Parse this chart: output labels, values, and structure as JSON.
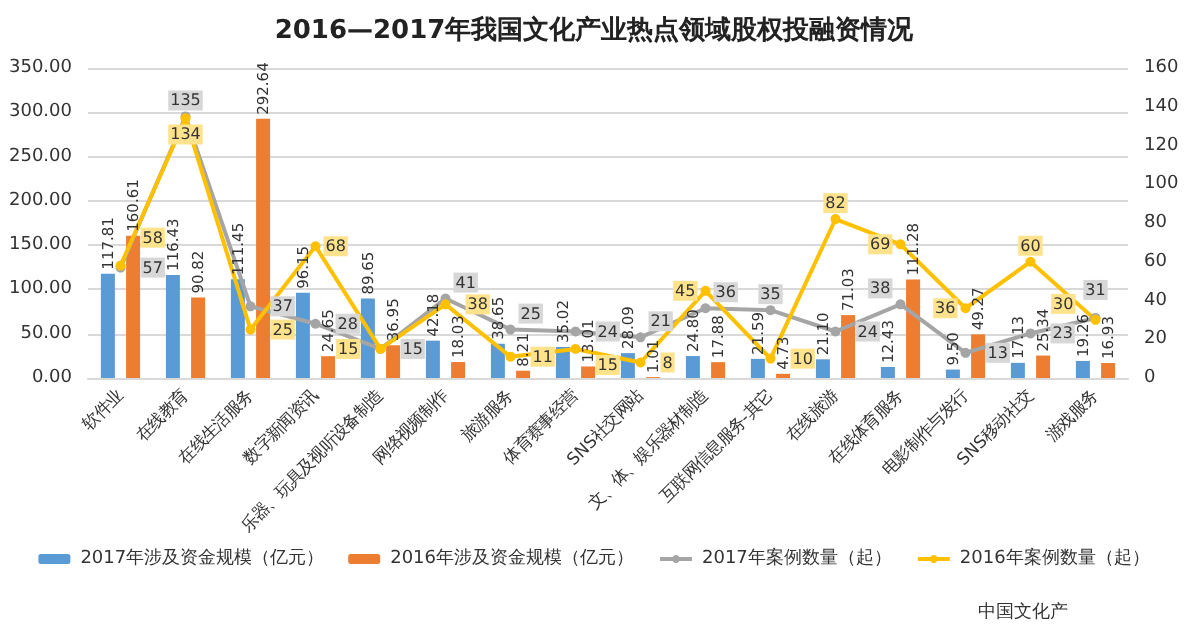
{
  "chart_data": {
    "type": "bar",
    "title": "2016—2017年我国文化产业热点领域股权投融资情况",
    "categories": [
      "软件业",
      "在线教育",
      "在线生活服务",
      "数字新闻资讯",
      "乐器、玩具及视听设备制造",
      "网络视频制作",
      "旅游服务",
      "体育赛事经营",
      "SNS社交网站",
      "文、体、娱乐器材制造",
      "互联网信息服务-其它",
      "在线旅游",
      "在线体育服务",
      "电影制作与发行",
      "SNS移动社交",
      "游戏服务"
    ],
    "series": [
      {
        "name": "2017年涉及资金规模（亿元）",
        "color": "#5b9bd5",
        "values": [
          117.81,
          116.43,
          111.45,
          96.15,
          89.65,
          42.18,
          38.65,
          35.02,
          28.09,
          24.8,
          21.59,
          21.1,
          12.43,
          9.5,
          17.13,
          19.26
        ],
        "value_labels": [
          "117.81",
          "116.43",
          "111.45",
          "96.15",
          "89.65",
          "42.18",
          "38.65",
          "35.02",
          "28.09",
          "24.80",
          "21.59",
          "21.10",
          "12.43",
          "9.50",
          "17.13",
          "19.26"
        ]
      },
      {
        "name": "2016年涉及资金规模（亿元）",
        "color": "#ed7d31",
        "values": [
          160.61,
          90.82,
          292.64,
          24.65,
          36.95,
          18.03,
          8.21,
          13.01,
          1.01,
          17.88,
          4.73,
          71.03,
          111.28,
          49.27,
          25.34,
          16.93
        ],
        "value_labels": [
          "160.61",
          "90.82",
          "292.64",
          "24.65",
          "36.95",
          "18.03",
          "8.21",
          "13.01",
          "1.01",
          "17.88",
          "4.73",
          "71.03",
          "111.28",
          "49.27",
          "25.34",
          "16.93"
        ]
      },
      {
        "name": "2017年案例数量（起）",
        "type": "line",
        "axis": "y2",
        "color": "#a5a5a5",
        "values": [
          57,
          135,
          37,
          28,
          15,
          41,
          25,
          24,
          21,
          36,
          35,
          24,
          38,
          13,
          23,
          31
        ],
        "value_labels": [
          "57",
          "135",
          "37",
          "28",
          "15",
          "41",
          "25",
          "24",
          "21",
          "36",
          "35",
          "24",
          "38",
          "13",
          "23",
          "31"
        ]
      },
      {
        "name": "2016年案例数量（起）",
        "type": "line",
        "axis": "y2",
        "color": "#ffc000",
        "values": [
          58,
          134,
          25,
          68,
          15,
          38,
          11,
          15,
          8,
          45,
          10,
          82,
          69,
          36,
          60,
          30
        ],
        "value_labels": [
          "58",
          "134",
          "25",
          "68",
          "15",
          "38",
          "11",
          "15",
          "8",
          "45",
          "10",
          "82",
          "69",
          "36",
          "60",
          "30"
        ]
      }
    ],
    "ylim": [
      0,
      350
    ],
    "yticks": [
      {
        "value": 0,
        "label": "0.00"
      },
      {
        "value": 50,
        "label": "50.00"
      },
      {
        "value": 100,
        "label": "100.00"
      },
      {
        "value": 150,
        "label": "150.00"
      },
      {
        "value": 200,
        "label": "200.00"
      },
      {
        "value": 250,
        "label": "250.00"
      },
      {
        "value": 300,
        "label": "300.00"
      },
      {
        "value": 350,
        "label": "350.00"
      }
    ],
    "y2lim": [
      0,
      160
    ],
    "y2ticks": [
      0,
      20,
      40,
      60,
      80,
      100,
      120,
      140,
      160
    ],
    "grid": "y",
    "legend": "bottom",
    "marker": "circle",
    "annotations": [
      "中国文化产"
    ]
  }
}
